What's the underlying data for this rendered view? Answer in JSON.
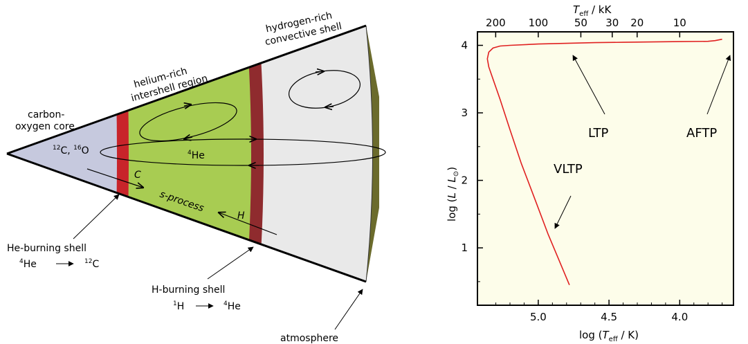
{
  "diagram": {
    "labels": {
      "core_line1": "carbon-",
      "core_line2": "oxygen core",
      "intershell_line1": "helium-rich",
      "intershell_line2": "intershell region",
      "envelope_line1": "hydrogen-rich",
      "envelope_line2": "convective shell",
      "core_comp_c": "C, ",
      "core_comp_o": "O",
      "core_comp_c_mass": "12",
      "core_comp_o_mass": "16",
      "he4_mass": "4",
      "he4": "He",
      "c_arrow": "C",
      "h_arrow": "H",
      "sprocess": "s-process",
      "he_burning": "He-burning shell",
      "he_reaction_lhs_mass": "4",
      "he_reaction_lhs": "He",
      "he_reaction_rhs_mass": "12",
      "he_reaction_rhs": "C",
      "h_burning": "H-burning shell",
      "h_reaction_lhs_mass": "1",
      "h_reaction_lhs": "H",
      "h_reaction_rhs_mass": "4",
      "h_reaction_rhs": "He",
      "atmosphere": "atmosphere"
    },
    "colors": {
      "core": "#c6c9de",
      "he_burning_shell": "#c8242a",
      "intershell": "#a8cc52",
      "h_burning_shell": "#8f2b2e",
      "envelope": "#e9e9e9",
      "atmosphere": "#6b6b2c"
    }
  },
  "chart": {
    "top_axis_title_T": "T",
    "top_axis_title_sub": "eff",
    "top_axis_title_unit": " / kK",
    "y_axis_title_pre": "log (",
    "y_axis_title_L": "L",
    "y_axis_title_mid": " / ",
    "y_axis_title_Lsun": "L",
    "y_axis_title_sun": "⊙",
    "y_axis_title_post": ")",
    "x_axis_title_pre": "log (",
    "x_axis_title_T": "T",
    "x_axis_title_sub": "eff",
    "x_axis_title_post": " / K)",
    "annotations": {
      "vltp": "VLTP",
      "ltp": "LTP",
      "aftp": "AFTP"
    },
    "plot_bg": "#fdfdea",
    "curve_color": "#e02020"
  },
  "chart_data": {
    "type": "line",
    "x_scale": "reversed",
    "xlim": [
      5.43,
      3.62
    ],
    "ylim": [
      0.15,
      4.2
    ],
    "x_ticks": [
      5.0,
      4.5,
      4.0
    ],
    "x_tick_labels": [
      "5.0",
      "4.5",
      "4.0"
    ],
    "y_ticks": [
      1,
      2,
      3,
      4
    ],
    "y_tick_labels": [
      "1",
      "2",
      "3",
      "4"
    ],
    "top_ticks_kK": [
      200,
      100,
      50,
      30,
      20,
      10
    ],
    "top_tick_labels": [
      "200",
      "100",
      "50",
      "30",
      "20",
      "10"
    ],
    "series": [
      {
        "x": [
          4.78,
          4.85,
          4.93,
          5.02,
          5.12,
          5.2,
          5.27,
          5.32,
          5.35,
          5.36,
          5.35,
          5.32,
          5.27,
          5.2,
          5.0,
          4.8,
          4.6,
          4.4,
          4.2,
          4.0,
          3.8,
          3.75,
          3.7
        ],
        "y": [
          0.45,
          0.8,
          1.2,
          1.7,
          2.25,
          2.75,
          3.2,
          3.5,
          3.68,
          3.8,
          3.9,
          3.96,
          3.99,
          4.0,
          4.02,
          4.03,
          4.04,
          4.045,
          4.05,
          4.055,
          4.06,
          4.07,
          4.09
        ]
      }
    ]
  }
}
